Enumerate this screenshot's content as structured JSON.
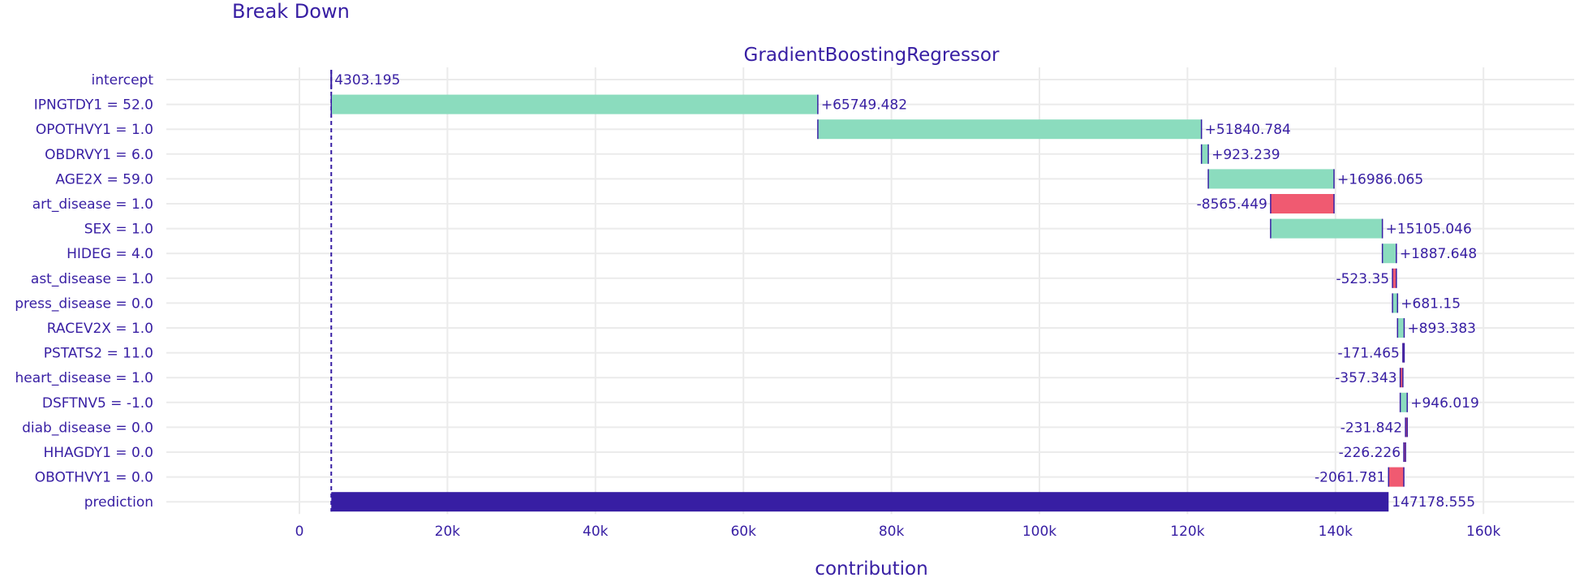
{
  "header": {
    "title": "Break Down"
  },
  "chart_data": {
    "type": "bar",
    "subtitle": "GradientBoostingRegressor",
    "xlabel": "contribution",
    "ylabel": "",
    "xlim": [
      -17000,
      170000
    ],
    "x_ticks": [
      0,
      20000,
      40000,
      60000,
      80000,
      100000,
      120000,
      140000,
      160000
    ],
    "x_tick_labels": [
      "0",
      "20k",
      "40k",
      "60k",
      "80k",
      "100k",
      "120k",
      "140k",
      "160k"
    ],
    "grid": true,
    "orientation": "horizontal",
    "colors": {
      "positive": "#8bdcbe",
      "negative": "#f05a71",
      "prediction": "#371ea3",
      "text": "#371ea3"
    },
    "categories": [
      "intercept",
      "IPNGTDY1 = 52.0",
      "OPOTHVY1 = 1.0",
      "OBDRVY1 = 6.0",
      "AGE2X = 59.0",
      "art_disease = 1.0",
      "SEX = 1.0",
      "HIDEG = 4.0",
      "ast_disease = 1.0",
      "press_disease = 0.0",
      "RACEV2X = 1.0",
      "PSTATS2 = 11.0",
      "heart_disease = 1.0",
      "DSFTNV5 = -1.0",
      "diab_disease = 0.0",
      "HHAGDY1 = 0.0",
      "OBOTHVY1 = 0.0",
      "prediction"
    ],
    "values": [
      4303.195,
      65749.482,
      51840.784,
      923.239,
      16986.065,
      -8565.449,
      15105.046,
      1887.648,
      -523.35,
      681.15,
      893.383,
      -171.465,
      -357.343,
      946.019,
      -231.842,
      -226.226,
      -2061.781,
      147178.555
    ],
    "labels": [
      "4303.195",
      "+65749.482",
      "+51840.784",
      "+923.239",
      "+16986.065",
      "-8565.449",
      "+15105.046",
      "+1887.648",
      "-523.35",
      "+681.15",
      "+893.383",
      "-171.465",
      "-357.343",
      "+946.019",
      "-231.842",
      "-226.226",
      "-2061.781",
      "147178.555"
    ]
  }
}
